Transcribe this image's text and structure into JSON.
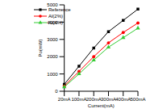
{
  "chart_data": {
    "type": "line",
    "x_label": "Current(mA)",
    "y_label": "Po(mW)",
    "categories": [
      "20mA",
      "100mA",
      "200mA",
      "300mA",
      "400mA",
      "500mA"
    ],
    "series": [
      {
        "name": "Reference",
        "color": "#000000",
        "marker": "square",
        "values": [
          400,
          1450,
          2500,
          3450,
          4100,
          4750
        ]
      },
      {
        "name": "Al(2%)",
        "color": "#ff0000",
        "marker": "circle",
        "values": [
          300,
          1150,
          2000,
          2800,
          3400,
          3950
        ]
      },
      {
        "name": "Al(4%)",
        "color": "#33cc33",
        "marker": "triangle",
        "values": [
          250,
          1000,
          1800,
          2550,
          3100,
          3650
        ]
      }
    ],
    "ylim": [
      0,
      5000
    ],
    "yticks": [
      0,
      1000,
      2000,
      3000,
      4000,
      5000
    ],
    "grid": false,
    "legend": "upper left"
  }
}
